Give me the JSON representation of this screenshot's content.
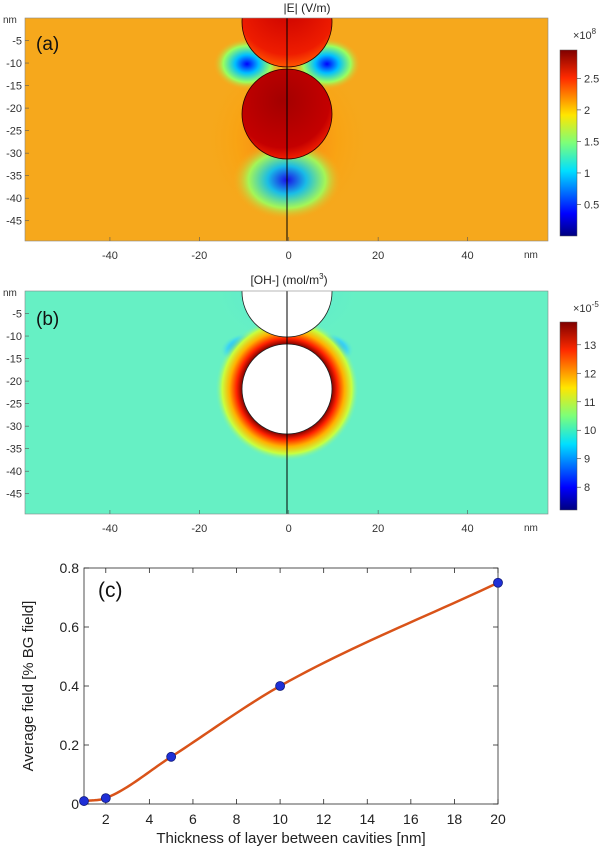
{
  "colors": {
    "background_field_a": "#f6a81c",
    "background_field_b": "#66f0c4",
    "curve": "#d95319",
    "points": "#1f2fd6",
    "points_edge": "#101a7a"
  },
  "chart_data": [
    {
      "type": "heatmap",
      "panel": "(a)",
      "title": "|E| (V/m)",
      "x_unit": "nm",
      "y_unit": "nm",
      "x_ticks": [
        "-40",
        "-20",
        "0",
        "20",
        "40"
      ],
      "y_ticks": [
        "-5",
        "-10",
        "-15",
        "-20",
        "-25",
        "-30",
        "-35",
        "-40",
        "-45"
      ],
      "xlim": [
        -59,
        58
      ],
      "ylim": [
        -49.5,
        0
      ],
      "colorbar": {
        "multiplier": "×10",
        "exponent": "8",
        "ticks": [
          "2.5",
          "2",
          "1.5",
          "1",
          "0.5"
        ],
        "tick_values": [
          2.5,
          2,
          1.5,
          1,
          0.5
        ],
        "range": [
          0,
          2.95
        ]
      }
    },
    {
      "type": "heatmap",
      "panel": "(b)",
      "title_main": "[OH-]  (mol/m",
      "title_sup": "3",
      "title_end": ")",
      "x_unit": "nm",
      "y_unit": "nm",
      "x_ticks": [
        "-40",
        "-20",
        "0",
        "20",
        "40"
      ],
      "y_ticks": [
        "-5",
        "-10",
        "-15",
        "-20",
        "-25",
        "-30",
        "-35",
        "-40",
        "-45"
      ],
      "xlim": [
        -59,
        58
      ],
      "ylim": [
        -49.5,
        0
      ],
      "colorbar": {
        "multiplier": "×10",
        "exponent": "-5",
        "ticks": [
          "13",
          "12",
          "11",
          "10",
          "9",
          "8"
        ],
        "tick_values": [
          13,
          12,
          11,
          10,
          9,
          8
        ],
        "range": [
          7.2,
          13.8
        ]
      }
    },
    {
      "type": "line",
      "panel": "(c)",
      "xlabel": "Thickness of layer between cavities [nm]",
      "ylabel": "Average field [% BG field]",
      "x": [
        1,
        2,
        5,
        10,
        20
      ],
      "y": [
        0.01,
        0.02,
        0.16,
        0.4,
        0.75
      ],
      "xlim": [
        1,
        20
      ],
      "ylim": [
        0,
        0.8
      ],
      "x_ticks": [
        "2",
        "4",
        "6",
        "8",
        "10",
        "12",
        "14",
        "16",
        "18",
        "20"
      ],
      "x_tick_values": [
        2,
        4,
        6,
        8,
        10,
        12,
        14,
        16,
        18,
        20
      ],
      "y_ticks": [
        "0",
        "0.2",
        "0.4",
        "0.6",
        "0.8"
      ],
      "y_tick_values": [
        0,
        0.2,
        0.4,
        0.6,
        0.8
      ],
      "grid": false
    }
  ]
}
